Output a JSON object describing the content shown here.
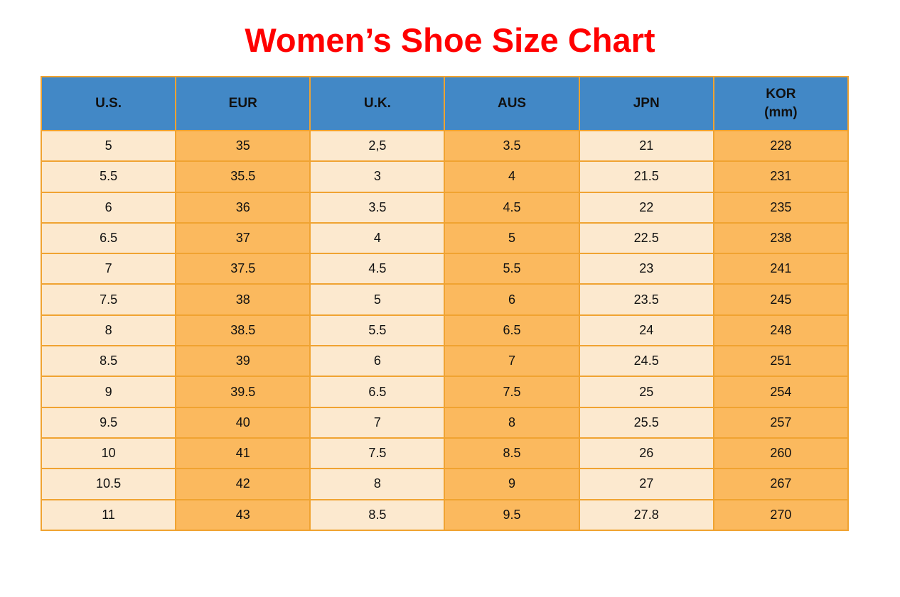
{
  "page": {
    "title": "Women’s Shoe Size Chart"
  },
  "colors": {
    "title_red": "#FF0000",
    "header_blue": "#4288C6",
    "cell_cream": "#FCE9CF",
    "cell_orange": "#FBB95E",
    "border_orange": "#F0A331",
    "cell_text": "#111111",
    "page_bg": "#FFFFFF"
  },
  "chart_data": {
    "type": "table",
    "title": "Women’s Shoe Size Chart",
    "columns": [
      "U.S.",
      "EUR",
      "U.K.",
      "AUS",
      "JPN",
      "KOR\n(mm)"
    ],
    "column_fills": [
      "cream",
      "orange",
      "cream",
      "orange",
      "cream",
      "orange"
    ],
    "rows": [
      [
        "5",
        "35",
        "2,5",
        "3.5",
        "21",
        "228"
      ],
      [
        "5.5",
        "35.5",
        "3",
        "4",
        "21.5",
        "231"
      ],
      [
        "6",
        "36",
        "3.5",
        "4.5",
        "22",
        "235"
      ],
      [
        "6.5",
        "37",
        "4",
        "5",
        "22.5",
        "238"
      ],
      [
        "7",
        "37.5",
        "4.5",
        "5.5",
        "23",
        "241"
      ],
      [
        "7.5",
        "38",
        "5",
        "6",
        "23.5",
        "245"
      ],
      [
        "8",
        "38.5",
        "5.5",
        "6.5",
        "24",
        "248"
      ],
      [
        "8.5",
        "39",
        "6",
        "7",
        "24.5",
        "251"
      ],
      [
        "9",
        "39.5",
        "6.5",
        "7.5",
        "25",
        "254"
      ],
      [
        "9.5",
        "40",
        "7",
        "8",
        "25.5",
        "257"
      ],
      [
        "10",
        "41",
        "7.5",
        "8.5",
        "26",
        "260"
      ],
      [
        "10.5",
        "42",
        "8",
        "9",
        "27",
        "267"
      ],
      [
        "11",
        "43",
        "8.5",
        "9.5",
        "27.8",
        "270"
      ]
    ]
  }
}
